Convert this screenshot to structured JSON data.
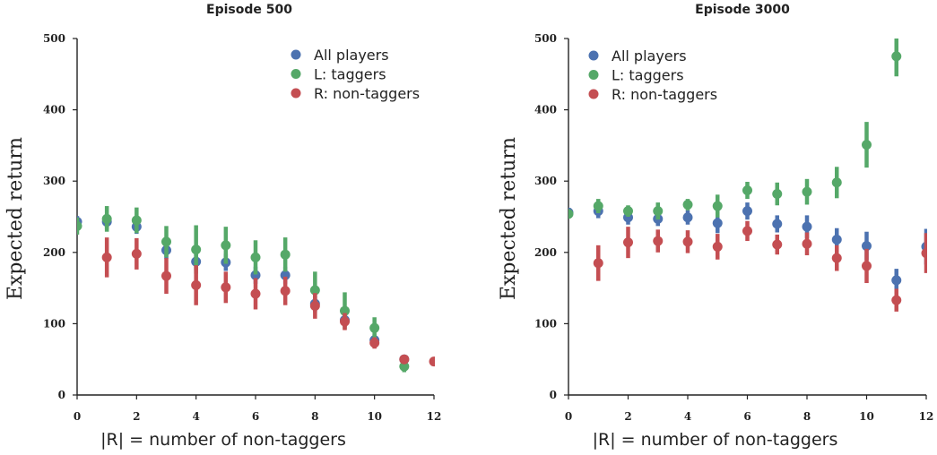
{
  "chart_data": [
    {
      "type": "scatter",
      "title": "Episode 500",
      "xlabel": "|R| = number of non-taggers",
      "ylabel": "Expected return",
      "xlim": [
        0,
        12
      ],
      "ylim": [
        0,
        500
      ],
      "xticks": [
        0,
        2,
        4,
        6,
        8,
        10,
        12
      ],
      "yticks": [
        0,
        100,
        200,
        300,
        400,
        500
      ],
      "legend": "top-right",
      "grid": false,
      "series": [
        {
          "name": "All players",
          "color": "#4c72b0",
          "x": [
            0,
            1,
            2,
            3,
            4,
            5,
            6,
            7,
            8,
            9,
            10,
            11
          ],
          "y": [
            243,
            243,
            236,
            203,
            187,
            186,
            168,
            168,
            128,
            105,
            77,
            50
          ],
          "err": [
            8,
            10,
            10,
            12,
            12,
            12,
            12,
            12,
            12,
            10,
            8,
            5
          ]
        },
        {
          "name": "L: taggers",
          "color": "#55a868",
          "x": [
            0,
            1,
            2,
            3,
            4,
            5,
            6,
            7,
            8,
            9,
            10,
            11
          ],
          "y": [
            237,
            247,
            245,
            215,
            204,
            210,
            193,
            197,
            147,
            118,
            94,
            40
          ],
          "err": [
            12,
            18,
            18,
            22,
            34,
            26,
            24,
            24,
            26,
            26,
            15,
            8
          ]
        },
        {
          "name": "R: non-taggers",
          "color": "#c44e52",
          "x": [
            1,
            2,
            3,
            4,
            5,
            6,
            7,
            8,
            9,
            10,
            11,
            12
          ],
          "y": [
            193,
            198,
            167,
            154,
            151,
            142,
            146,
            125,
            103,
            73,
            50,
            47
          ],
          "err": [
            28,
            22,
            25,
            28,
            22,
            22,
            20,
            18,
            12,
            8,
            6,
            6
          ]
        }
      ]
    },
    {
      "type": "scatter",
      "title": "Episode 3000",
      "xlabel": "|R| = number of non-taggers",
      "ylabel": "Expected return",
      "xlim": [
        0,
        12
      ],
      "ylim": [
        0,
        500
      ],
      "xticks": [
        0,
        2,
        4,
        6,
        8,
        10,
        12
      ],
      "yticks": [
        0,
        100,
        200,
        300,
        400,
        500
      ],
      "legend": "top-left",
      "grid": false,
      "series": [
        {
          "name": "All players",
          "color": "#4c72b0",
          "x": [
            0,
            1,
            2,
            3,
            4,
            5,
            6,
            7,
            8,
            9,
            10,
            11,
            12
          ],
          "y": [
            256,
            258,
            249,
            247,
            249,
            241,
            258,
            240,
            236,
            218,
            209,
            161,
            208
          ],
          "err": [
            6,
            10,
            10,
            10,
            10,
            14,
            12,
            12,
            16,
            16,
            20,
            16,
            25
          ]
        },
        {
          "name": "L: taggers",
          "color": "#55a868",
          "x": [
            0,
            1,
            2,
            3,
            4,
            5,
            6,
            7,
            8,
            9,
            10,
            11
          ],
          "y": [
            254,
            265,
            258,
            258,
            267,
            265,
            287,
            282,
            285,
            298,
            351,
            475
          ],
          "err": [
            6,
            10,
            8,
            12,
            8,
            16,
            12,
            16,
            18,
            22,
            32,
            28
          ]
        },
        {
          "name": "R: non-taggers",
          "color": "#c44e52",
          "x": [
            1,
            2,
            3,
            4,
            5,
            6,
            7,
            8,
            9,
            10,
            11,
            12
          ],
          "y": [
            185,
            214,
            216,
            215,
            208,
            230,
            211,
            212,
            192,
            181,
            133,
            199
          ],
          "err": [
            25,
            22,
            16,
            16,
            18,
            14,
            14,
            16,
            18,
            24,
            16,
            28
          ]
        }
      ]
    }
  ]
}
